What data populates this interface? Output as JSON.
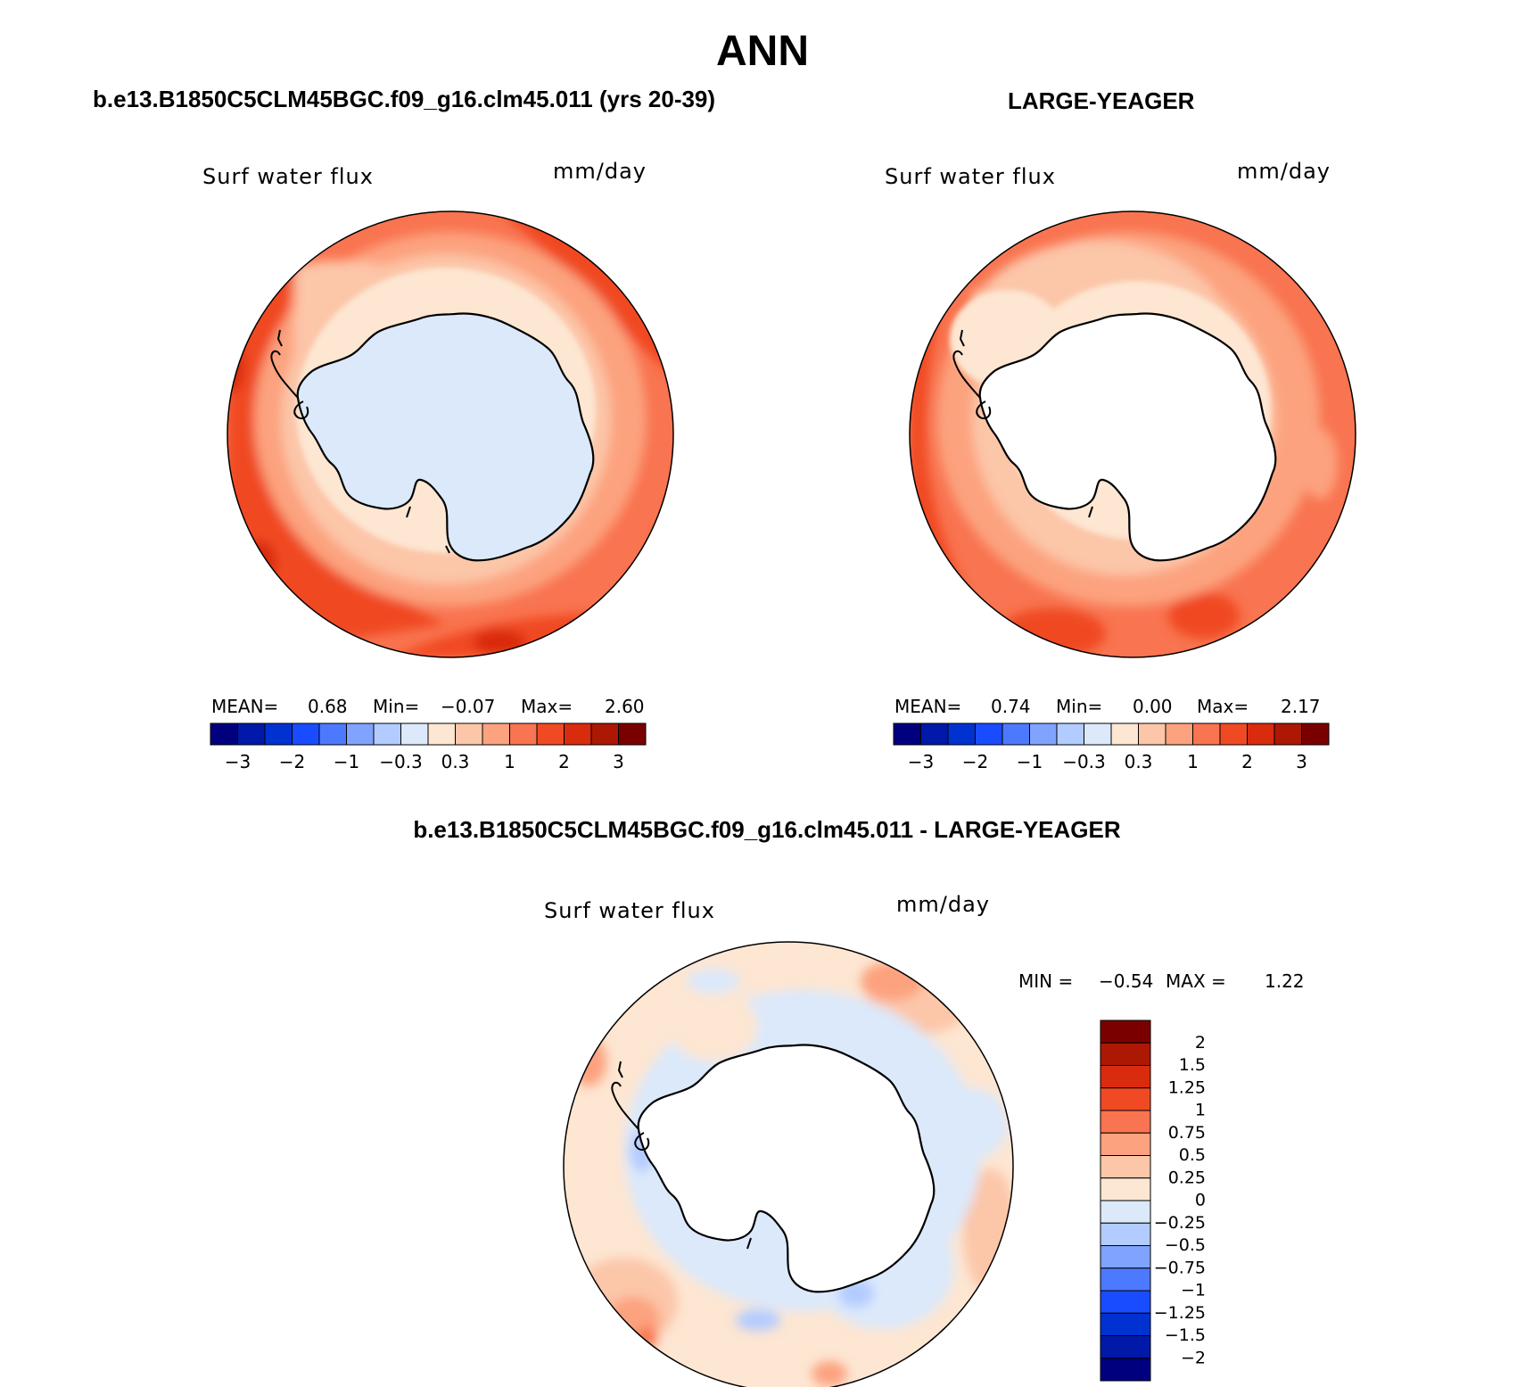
{
  "title": "ANN",
  "panels": [
    {
      "title": "b.e13.B1850C5CLM45BGC.f09_g16.clm45.011 (yrs 20-39)",
      "variable": "Surf water flux",
      "units": "mm/day",
      "stats": {
        "mean_label": "MEAN=",
        "mean": "0.68",
        "min_label": "Min=",
        "min": "−0.07",
        "max_label": "Max=",
        "max": "2.60"
      }
    },
    {
      "title": "LARGE-YEAGER",
      "variable": "Surf water flux",
      "units": "mm/day",
      "stats": {
        "mean_label": "MEAN=",
        "mean": "0.74",
        "min_label": "Min=",
        "min": "0.00",
        "max_label": "Max=",
        "max": "2.17"
      }
    },
    {
      "title": "b.e13.B1850C5CLM45BGC.f09_g16.clm45.011 - LARGE-YEAGER",
      "variable": "Surf water flux",
      "units": "mm/day",
      "stats": {
        "min_label": "MIN =",
        "min": "−0.54",
        "max_label": "MAX =",
        "max": "1.22"
      }
    }
  ],
  "colorbar_horizontal": {
    "colors": [
      "#00007f",
      "#0019a8",
      "#0032d2",
      "#1a4cff",
      "#4d79ff",
      "#80a3ff",
      "#b3ccff",
      "#dbe9fb",
      "#fde6d2",
      "#fcc6a9",
      "#fca27e",
      "#f97450",
      "#f04a24",
      "#d92b0d",
      "#ad1804",
      "#7a0000"
    ],
    "tick_labels": [
      "−3",
      "−2",
      "−1",
      "−0.3",
      "0.3",
      "1",
      "2",
      "3"
    ]
  },
  "colorbar_vertical": {
    "colors": [
      "#7a0000",
      "#ad1804",
      "#d92b0d",
      "#f04a24",
      "#f97450",
      "#fca27e",
      "#fcc6a9",
      "#fde6d2",
      "#dbe9fb",
      "#b3ccff",
      "#80a3ff",
      "#4d79ff",
      "#1a4cff",
      "#0032d2",
      "#0019a8",
      "#00007f"
    ],
    "tick_labels": [
      "2",
      "1.5",
      "1.25",
      "1",
      "0.75",
      "0.5",
      "0.25",
      "0",
      "−0.25",
      "−0.5",
      "−0.75",
      "−1",
      "−1.25",
      "−1.5",
      "−2"
    ]
  },
  "colors": {
    "coastline": "#000000",
    "land_missing": "#ffffff"
  }
}
